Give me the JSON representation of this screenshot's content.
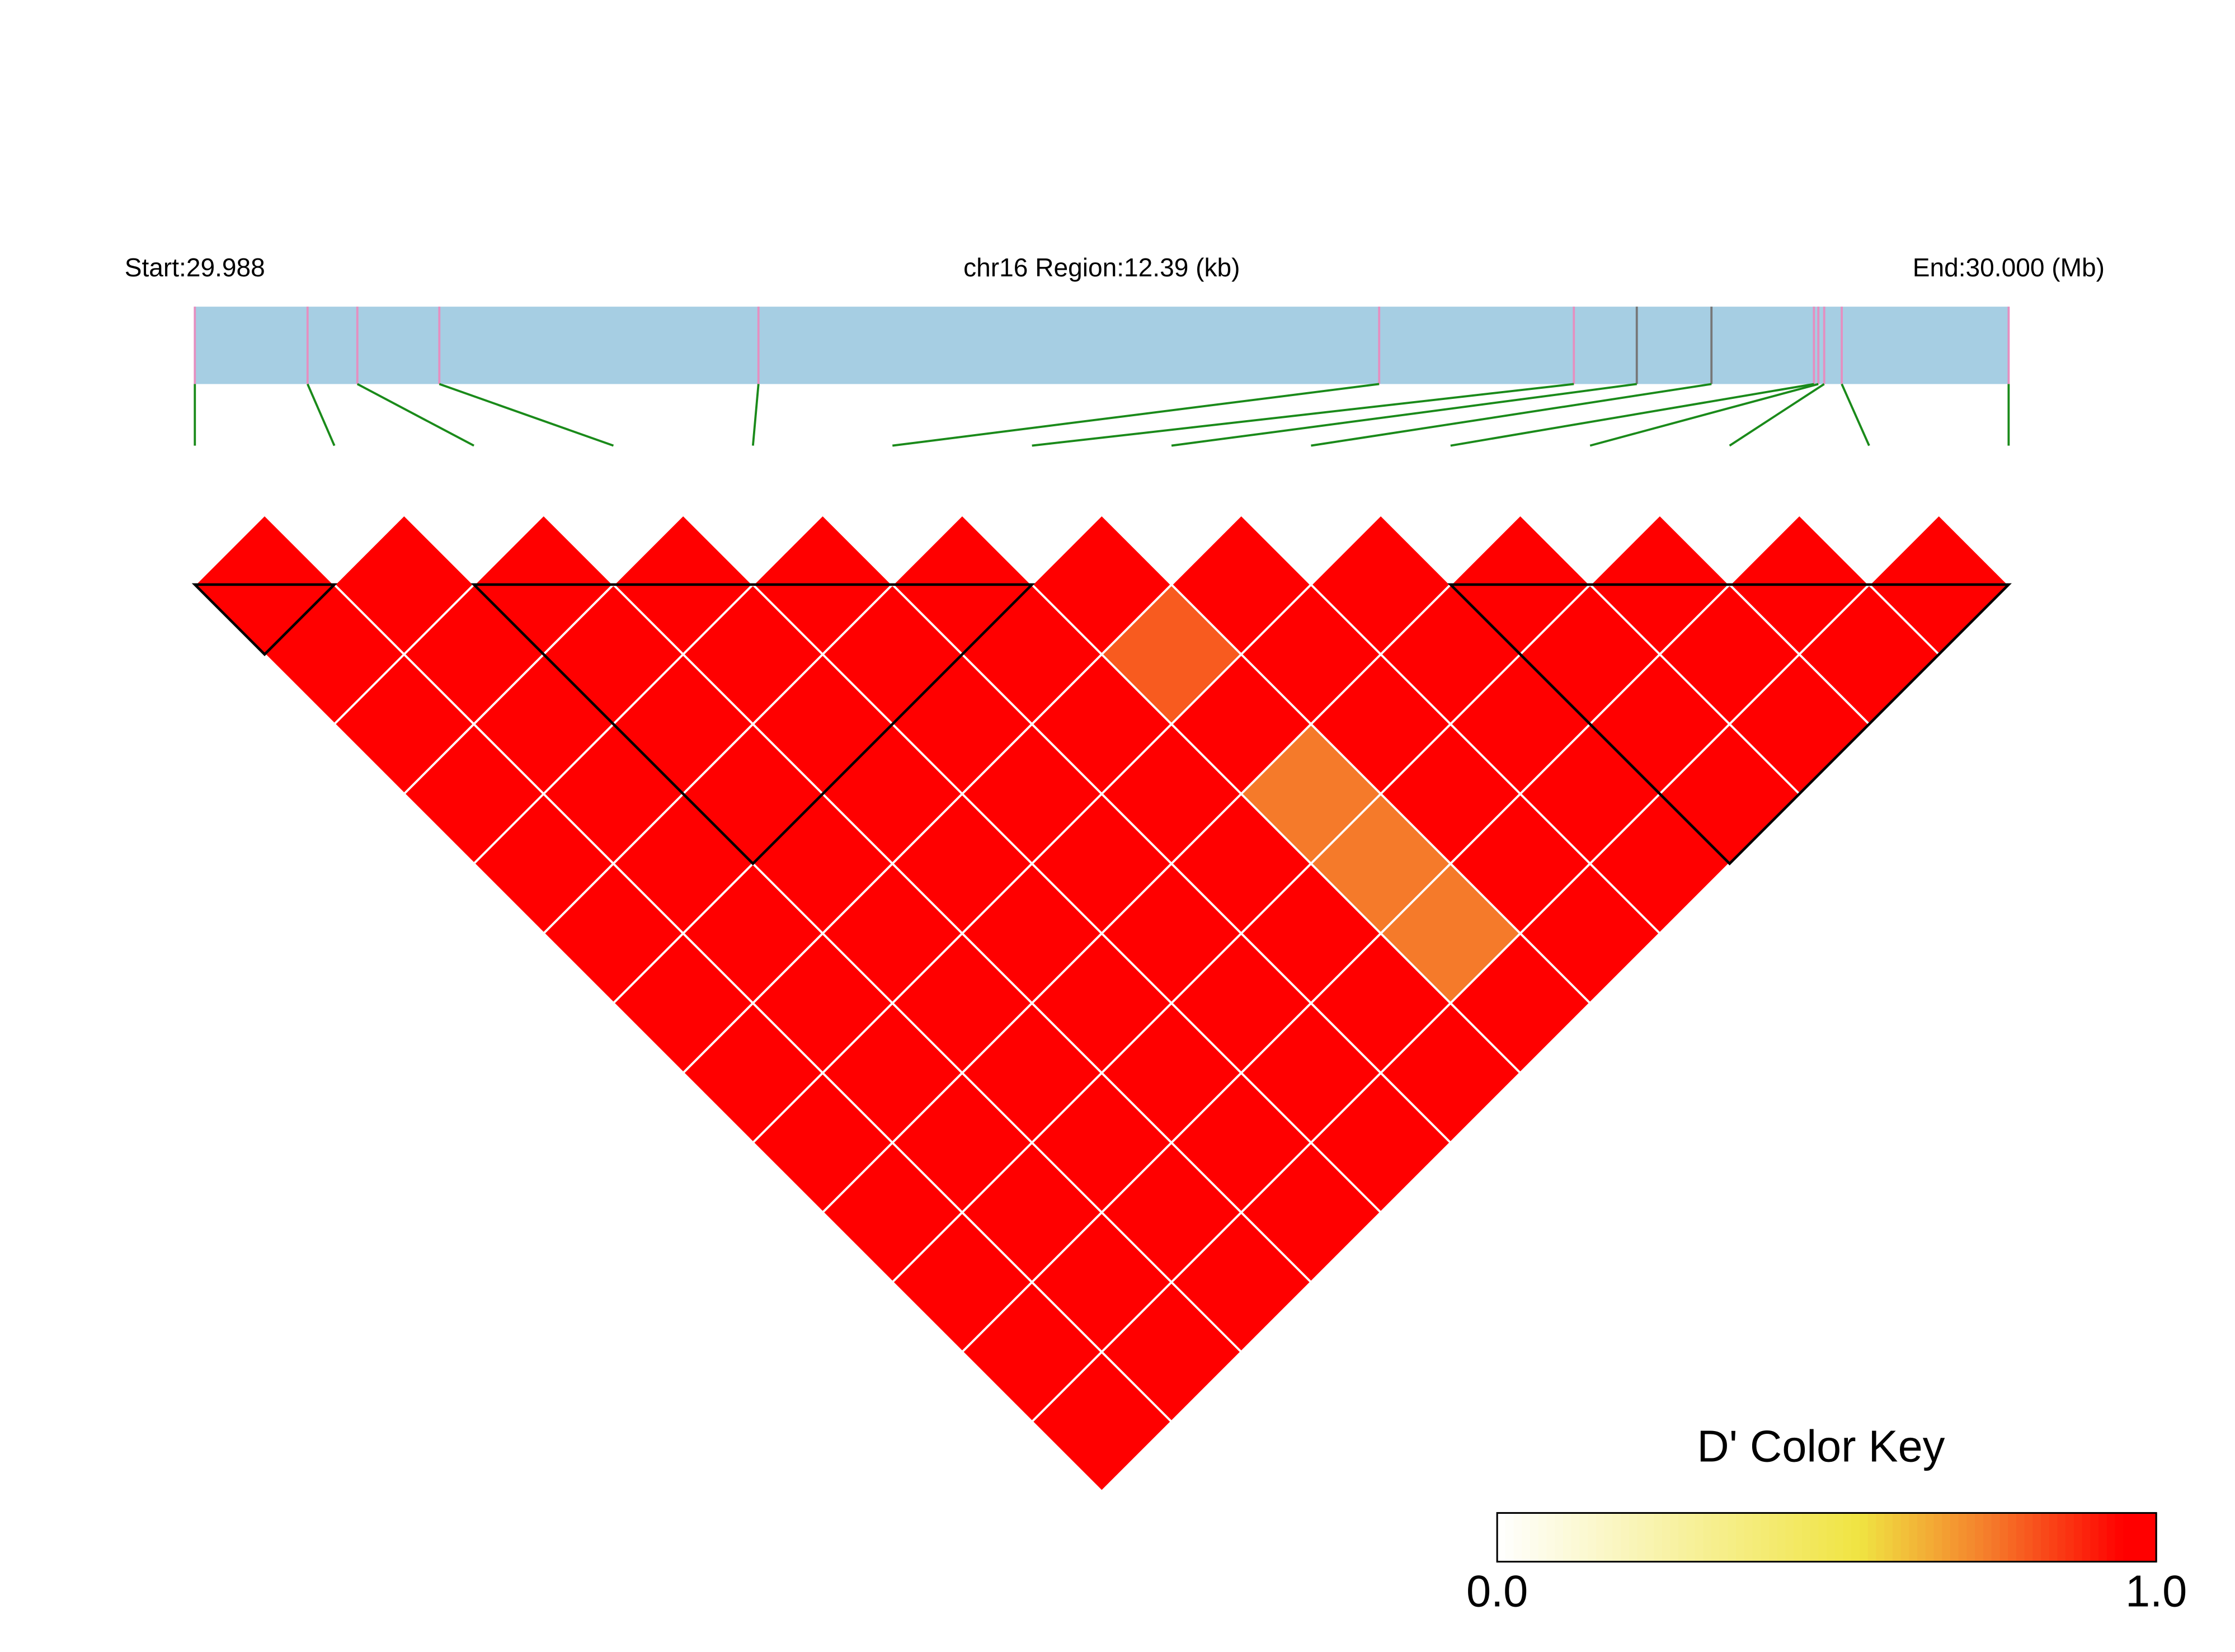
{
  "chart_data": {
    "type": "ld-heatmap",
    "start_label": "Start:29.988",
    "region_label": "chr16 Region:12.39 (kb)",
    "end_label": "End:30.000 (Mb)",
    "xlim": [
      0,
      12.39
    ],
    "snp_positions": [
      0,
      0.77,
      1.11,
      1.67,
      3.85,
      8.09,
      9.42,
      9.85,
      10.36,
      11.06,
      11.09,
      11.13,
      11.25,
      12.39
    ],
    "snp_marker_colors": [
      "#e58fc0",
      "#e58fc0",
      "#e58fc0",
      "#e58fc0",
      "#e58fc0",
      "#e58fc0",
      "#e58fc0",
      "#777777",
      "#777777",
      "#e58fc0",
      "#e58fc0",
      "#e58fc0",
      "#e58fc0",
      "#e58fc0"
    ],
    "bar_color": "#a6cee3",
    "connector_color": "#1a8a1a",
    "dprime": [
      [
        1,
        1,
        1,
        1,
        1,
        1,
        1,
        1,
        1,
        1,
        1,
        1,
        1
      ],
      [
        1,
        1,
        1,
        1,
        1,
        1,
        1,
        1,
        1,
        1,
        1,
        1
      ],
      [
        1,
        1,
        1,
        1,
        1,
        1,
        1,
        1,
        1,
        1,
        1
      ],
      [
        1,
        1,
        1,
        1,
        1,
        1,
        1,
        1,
        1,
        1
      ],
      [
        1,
        1,
        1,
        1,
        1,
        1,
        1,
        1,
        1
      ],
      [
        1,
        1,
        1,
        1,
        1,
        1,
        1,
        1
      ],
      [
        1,
        0.8,
        1,
        0.75,
        0.75,
        0.75,
        1
      ],
      [
        1,
        1,
        1,
        1,
        1,
        1
      ],
      [
        1,
        1,
        1,
        1,
        1
      ],
      [
        1,
        1,
        1,
        1
      ],
      [
        1,
        1,
        1
      ],
      [
        1,
        1
      ],
      [
        1
      ]
    ],
    "blocks": [
      [
        0,
        1
      ],
      [
        2,
        6
      ],
      [
        9,
        13
      ]
    ],
    "color_key": {
      "title": "D' Color Key",
      "ticks": [
        {
          "value": 0,
          "label": "0.0"
        },
        {
          "value": 1,
          "label": "1.0"
        }
      ],
      "stops": [
        [
          0,
          "#ffffff"
        ],
        [
          0.55,
          "#f0e442"
        ],
        [
          0.75,
          "#f57a2a"
        ],
        [
          0.95,
          "#ff0000"
        ],
        [
          1,
          "#ff0000"
        ]
      ]
    }
  }
}
